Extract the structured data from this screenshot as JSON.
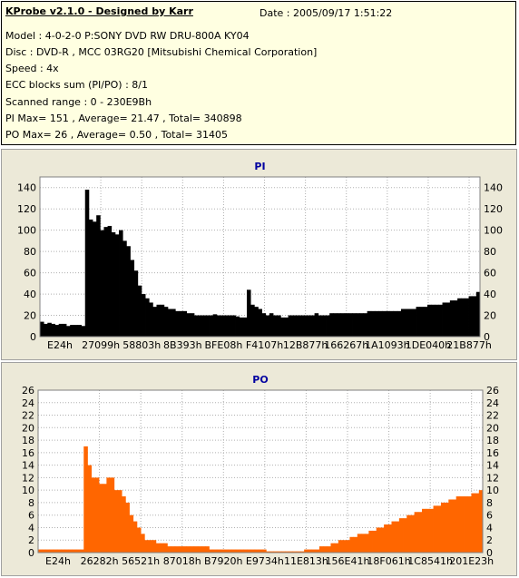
{
  "info": {
    "title": "KProbe v2.1.0 - Designed by Karr",
    "date": "Date : 2005/09/17 1:51:22",
    "model": "Model : 4-0-2-0 P:SONY    DVD RW DRU-800A  KY04",
    "disc": "Disc : DVD-R , MCC 03RG20  [Mitsubishi Chemical Corporation]",
    "speed": "Speed : 4x",
    "ecc": "ECC blocks sum (PI/PO) : 8/1",
    "range": "Scanned range : 0 - 230E9Bh",
    "pi_stats": "PI Max= 151 , Average= 21.47 , Total= 340898",
    "po_stats": "PO Max= 26 , Average= 0.50 , Total= 31405"
  },
  "colors": {
    "pi": "#000000",
    "po": "#ff6600",
    "plot_bg": "#ffffff",
    "panel_bg": "#ece9d8",
    "title": "#0000a0"
  },
  "chart_data": [
    {
      "type": "bar",
      "title": "PI",
      "xlabel": "",
      "ylabel": "",
      "ylim": [
        0,
        150
      ],
      "y_ticks": [
        0,
        20,
        40,
        60,
        80,
        100,
        120,
        140
      ],
      "x_tick_labels": [
        "E24h",
        "27099h",
        "58803h",
        "8B393h",
        "BFE08h",
        "F4107h",
        "12B877h",
        "166267h",
        "1A1093h",
        "1DE040h",
        "21B877h"
      ],
      "grid": true,
      "series": [
        {
          "values": [
            14,
            12,
            13,
            12,
            11,
            12,
            12,
            10,
            11,
            11,
            11,
            10,
            138,
            110,
            108,
            114,
            100,
            103,
            104,
            98,
            96,
            100,
            90,
            85,
            72,
            62,
            48,
            40,
            36,
            32,
            28,
            30,
            30,
            28,
            26,
            26,
            24,
            24,
            24,
            22,
            22,
            20,
            20,
            20,
            20,
            20,
            21,
            20,
            20,
            20,
            20,
            20,
            19,
            18,
            18,
            44,
            30,
            28,
            26,
            22,
            20,
            22,
            20,
            20,
            18,
            18,
            20,
            20,
            20,
            20,
            20,
            20,
            20,
            22,
            20,
            20,
            20,
            22,
            22,
            22,
            22,
            22,
            22,
            22,
            22,
            22,
            22,
            24,
            24,
            24,
            24,
            24,
            24,
            24,
            24,
            24,
            26,
            26,
            26,
            26,
            28,
            28,
            28,
            30,
            30,
            30,
            30,
            32,
            32,
            34,
            34,
            36,
            36,
            36,
            38,
            38,
            42
          ]
        }
      ]
    },
    {
      "type": "bar",
      "title": "PO",
      "xlabel": "",
      "ylabel": "",
      "ylim": [
        0,
        26
      ],
      "y_ticks": [
        0,
        2,
        4,
        6,
        8,
        10,
        12,
        14,
        16,
        18,
        20,
        22,
        24,
        26
      ],
      "x_tick_labels": [
        "E24h",
        "26282h",
        "56521h",
        "87018h",
        "B7920h",
        "E9734h",
        "11E813h",
        "156E41h",
        "18F061h",
        "1C8541h",
        "201E23h"
      ],
      "grid": true,
      "series": [
        {
          "values": [
            0.5,
            0.5,
            0.5,
            0.5,
            0.5,
            0.5,
            0.5,
            0.5,
            0.5,
            0.5,
            0.5,
            0.5,
            17,
            14,
            12,
            12,
            11,
            11,
            12,
            12,
            10,
            10,
            9,
            8,
            6,
            5,
            4,
            3,
            2,
            2,
            2,
            1.5,
            1.5,
            1.5,
            1,
            1,
            1,
            1,
            1,
            1,
            1,
            1,
            1,
            1,
            1,
            0.5,
            0.5,
            0.5,
            0.5,
            0.5,
            0.5,
            0.5,
            0.5,
            0.5,
            0.5,
            0.5,
            0.5,
            0.5,
            0.5,
            0.5,
            0.2,
            0.2,
            0.2,
            0.2,
            0.2,
            0.2,
            0.2,
            0.2,
            0.2,
            0.2,
            0.5,
            0.5,
            0.5,
            0.5,
            1,
            1,
            1,
            1.5,
            1.5,
            2,
            2,
            2,
            2.5,
            2.5,
            3,
            3,
            3,
            3.5,
            3.5,
            4,
            4,
            4.5,
            4.5,
            5,
            5,
            5.5,
            5.5,
            6,
            6,
            6.5,
            6.5,
            7,
            7,
            7,
            7.5,
            7.5,
            8,
            8,
            8.5,
            8.5,
            9,
            9,
            9,
            9,
            9.5,
            9.5,
            10
          ]
        }
      ]
    }
  ]
}
